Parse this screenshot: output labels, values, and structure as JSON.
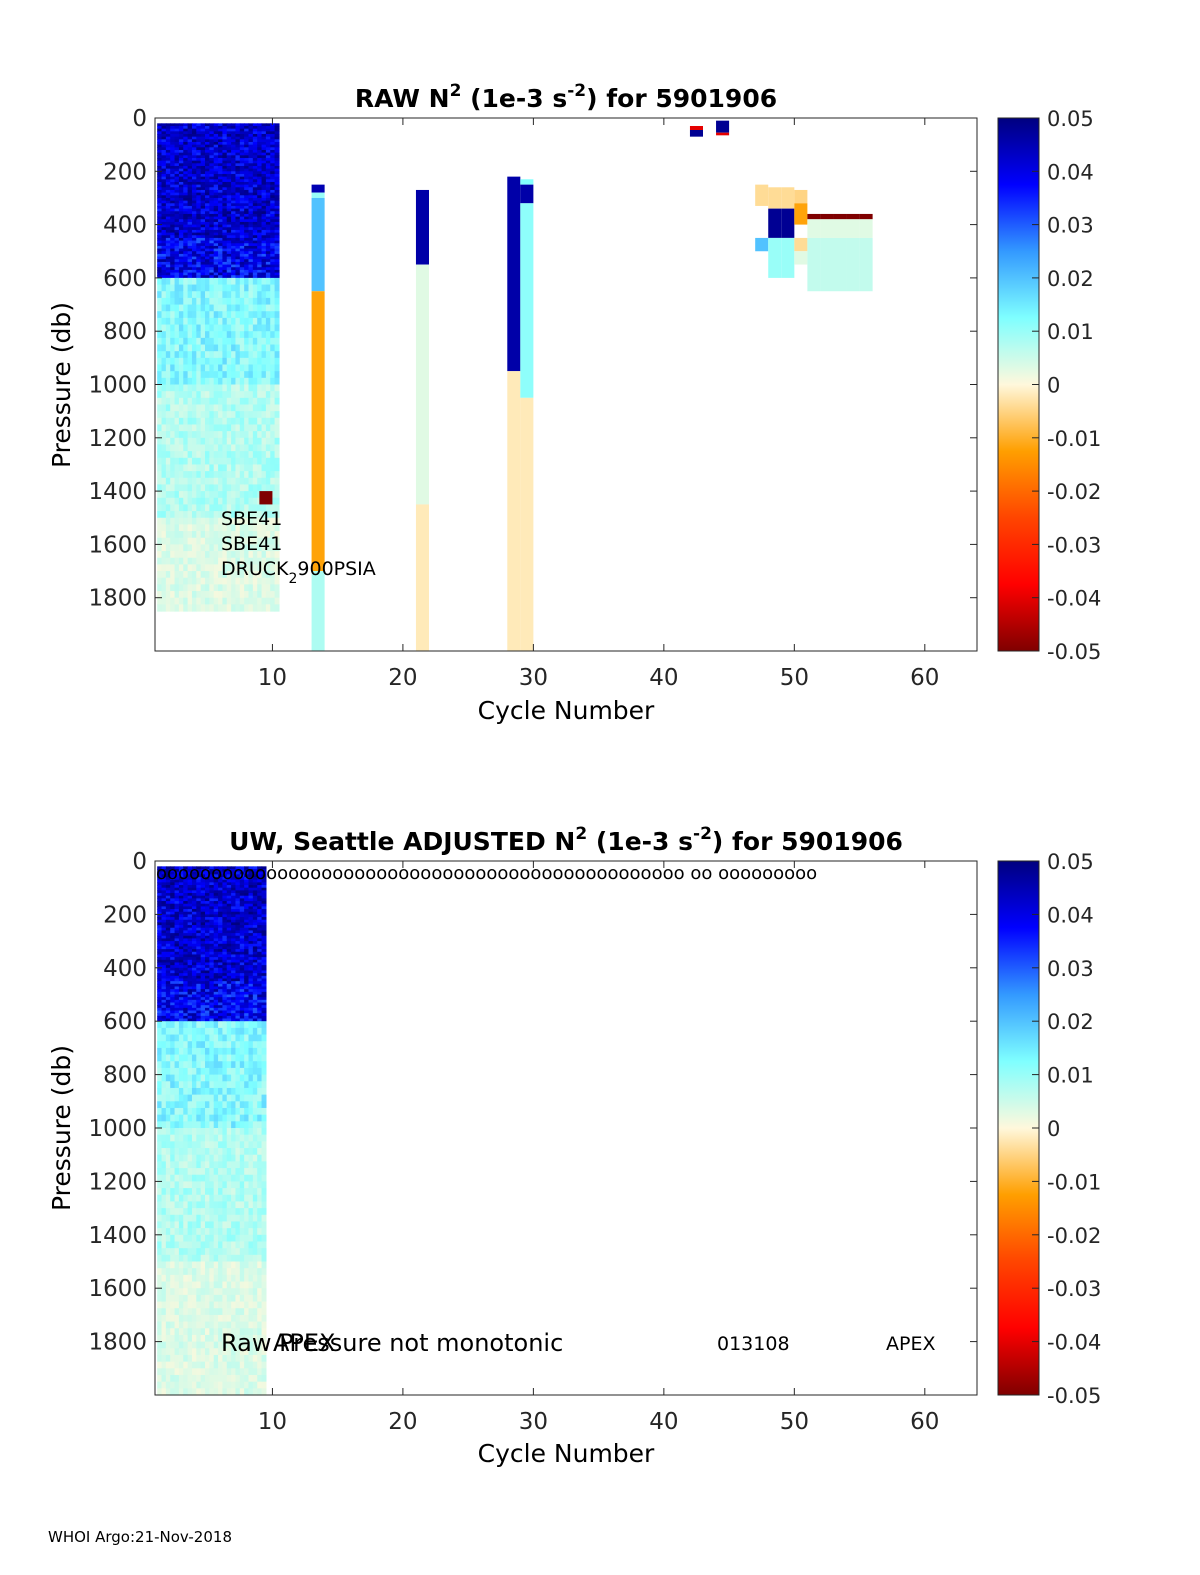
{
  "footer": "WHOI Argo:21-Nov-2018",
  "colorbar": {
    "ticks": [
      "0.05",
      "0.04",
      "0.03",
      "0.02",
      "0.01",
      "0",
      "-0.01",
      "-0.02",
      "-0.03",
      "-0.04",
      "-0.05"
    ],
    "range": [
      -0.05,
      0.05
    ]
  },
  "chart_data": [
    {
      "type": "heatmap",
      "title_parts": [
        "RAW N",
        "2",
        " (1e-3 s",
        "-2",
        ") for 5901906"
      ],
      "xlabel": "Cycle Number",
      "ylabel": "Pressure (db)",
      "xlim": [
        1,
        64
      ],
      "ylim": [
        0,
        2000
      ],
      "y_reversed": true,
      "x_ticks": [
        "10",
        "20",
        "30",
        "40",
        "50",
        "60"
      ],
      "y_ticks": [
        "0",
        "200",
        "400",
        "600",
        "800",
        "1000",
        "1200",
        "1400",
        "1600",
        "1800"
      ],
      "annotations": [
        "SBE41",
        "SBE41",
        "DRUCK",
        "2",
        "900PSIA"
      ],
      "bulk_cycles": [
        1,
        10
      ],
      "bulk_depth": 1850,
      "columns": [
        {
          "cycle": 13,
          "segments": [
            [
              250,
              280,
              0.045
            ],
            [
              280,
              300,
              0.01
            ],
            [
              300,
              650,
              0.02
            ],
            [
              650,
              1700,
              -0.012
            ],
            [
              1700,
              2000,
              0.008
            ]
          ]
        },
        {
          "cycle": 21,
          "segments": [
            [
              270,
              550,
              0.046
            ],
            [
              550,
              1450,
              0.003
            ],
            [
              1450,
              2000,
              -0.002
            ]
          ]
        },
        {
          "cycle": 28,
          "segments": [
            [
              220,
              950,
              0.046
            ],
            [
              950,
              2000,
              -0.002
            ]
          ]
        },
        {
          "cycle": 29,
          "segments": [
            [
              230,
              250,
              0.012
            ],
            [
              250,
              320,
              0.046
            ],
            [
              320,
              1050,
              0.011
            ],
            [
              1050,
              2000,
              -0.002
            ]
          ]
        }
      ],
      "cells": [
        {
          "cycle": 9,
          "p0": 1400,
          "p1": 1450,
          "value": -0.05
        },
        {
          "cycle": 42,
          "p0": 30,
          "p1": 45,
          "value": -0.04
        },
        {
          "cycle": 42,
          "p0": 45,
          "p1": 70,
          "value": 0.048
        },
        {
          "cycle": 44,
          "p0": 10,
          "p1": 55,
          "value": 0.048
        },
        {
          "cycle": 44,
          "p0": 55,
          "p1": 65,
          "value": -0.04
        },
        {
          "cycle": 47,
          "p0": 250,
          "p1": 330,
          "value": -0.004
        },
        {
          "cycle": 47,
          "p0": 450,
          "p1": 500,
          "value": 0.02
        },
        {
          "cycle": 48,
          "p0": 260,
          "p1": 340,
          "value": -0.004
        },
        {
          "cycle": 48,
          "p0": 340,
          "p1": 450,
          "value": 0.048
        },
        {
          "cycle": 48,
          "p0": 450,
          "p1": 600,
          "value": 0.01
        },
        {
          "cycle": 49,
          "p0": 260,
          "p1": 340,
          "value": -0.004
        },
        {
          "cycle": 49,
          "p0": 340,
          "p1": 450,
          "value": 0.048
        },
        {
          "cycle": 49,
          "p0": 450,
          "p1": 600,
          "value": 0.01
        },
        {
          "cycle": 50,
          "p0": 270,
          "p1": 320,
          "value": -0.005
        },
        {
          "cycle": 50,
          "p0": 320,
          "p1": 400,
          "value": -0.012
        },
        {
          "cycle": 50,
          "p0": 450,
          "p1": 500,
          "value": -0.004
        },
        {
          "cycle": 50,
          "p0": 500,
          "p1": 550,
          "value": 0.003
        },
        {
          "cycle": 51,
          "p0": 360,
          "p1": 380,
          "value": -0.05
        },
        {
          "cycle": 51,
          "p0": 380,
          "p1": 450,
          "value": 0.003
        },
        {
          "cycle": 51,
          "p0": 450,
          "p1": 650,
          "value": 0.006
        },
        {
          "cycle": 52,
          "p0": 360,
          "p1": 380,
          "value": -0.05
        },
        {
          "cycle": 52,
          "p0": 380,
          "p1": 450,
          "value": 0.003
        },
        {
          "cycle": 52,
          "p0": 450,
          "p1": 650,
          "value": 0.006
        },
        {
          "cycle": 53,
          "p0": 360,
          "p1": 380,
          "value": -0.05
        },
        {
          "cycle": 53,
          "p0": 380,
          "p1": 450,
          "value": 0.003
        },
        {
          "cycle": 53,
          "p0": 450,
          "p1": 650,
          "value": 0.006
        },
        {
          "cycle": 54,
          "p0": 360,
          "p1": 380,
          "value": -0.05
        },
        {
          "cycle": 54,
          "p0": 380,
          "p1": 450,
          "value": 0.003
        },
        {
          "cycle": 54,
          "p0": 450,
          "p1": 650,
          "value": 0.006
        },
        {
          "cycle": 55,
          "p0": 360,
          "p1": 380,
          "value": -0.05
        },
        {
          "cycle": 55,
          "p0": 380,
          "p1": 450,
          "value": 0.003
        },
        {
          "cycle": 55,
          "p0": 450,
          "p1": 650,
          "value": 0.006
        }
      ]
    },
    {
      "type": "heatmap",
      "title_parts": [
        "UW, Seattle  ADJUSTED N",
        "2",
        " (1e-3 s",
        "-2",
        ") for 5901906"
      ],
      "xlabel": "Cycle Number",
      "ylabel": "Pressure (db)",
      "xlim": [
        1,
        64
      ],
      "ylim": [
        0,
        2000
      ],
      "y_reversed": true,
      "x_ticks": [
        "10",
        "20",
        "30",
        "40",
        "50",
        "60"
      ],
      "y_ticks": [
        "0",
        "200",
        "400",
        "600",
        "800",
        "1000",
        "1200",
        "1400",
        "1600",
        "1800"
      ],
      "top_marker_text": "oooooooooooooooooooooooooooooooooooooooooooooooo  oo       ooooooooo",
      "annotations": [
        "Raw Pressure not monotonic",
        "APEX",
        "013108",
        "APEX"
      ],
      "bulk_cycles": [
        1,
        9
      ],
      "bulk_depth": 2000,
      "columns": [],
      "cells": []
    }
  ]
}
